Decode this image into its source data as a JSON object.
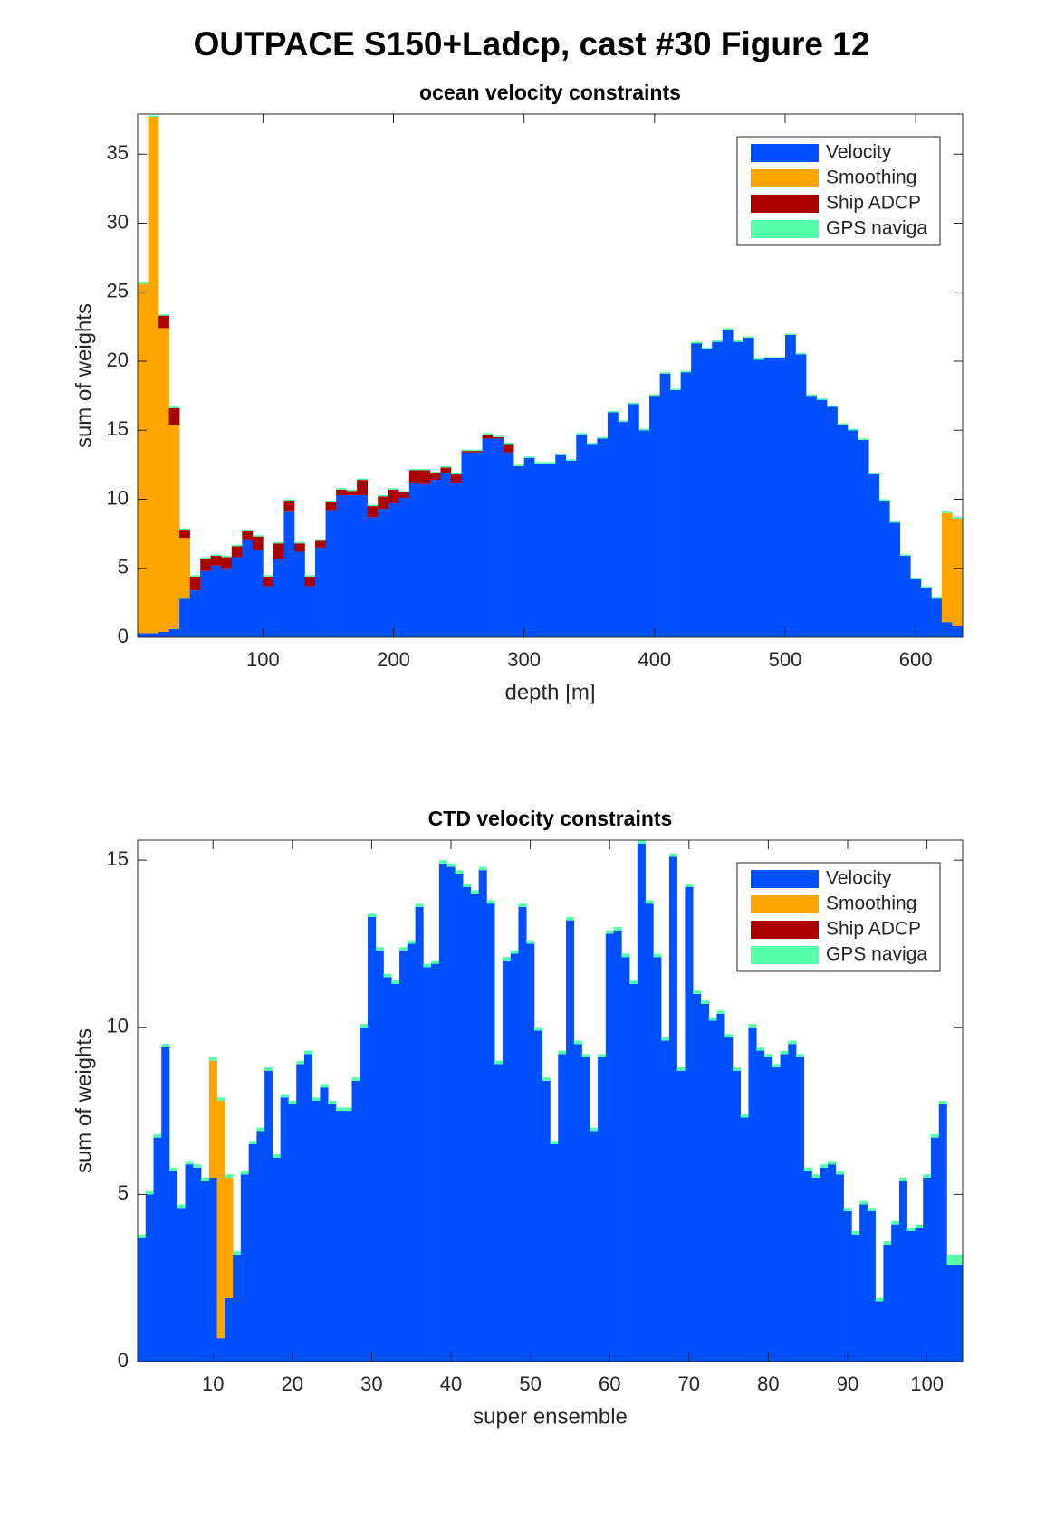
{
  "title": "OUTPACE S150+Ladcp, cast #30  Figure 12",
  "chart_data": [
    {
      "type": "bar",
      "stacked": true,
      "title": "ocean velocity constraints",
      "xlabel": "depth [m]",
      "ylabel": "sum of weights",
      "x": [
        8,
        16,
        24,
        32,
        40,
        48,
        56,
        64,
        72,
        80,
        88,
        96,
        104,
        112,
        120,
        128,
        136,
        144,
        152,
        160,
        168,
        176,
        184,
        192,
        200,
        208,
        216,
        224,
        232,
        240,
        248,
        256,
        264,
        272,
        280,
        288,
        296,
        304,
        312,
        320,
        328,
        336,
        344,
        352,
        360,
        368,
        376,
        384,
        392,
        400,
        408,
        416,
        424,
        432,
        440,
        448,
        456,
        464,
        472,
        480,
        488,
        496,
        504,
        512,
        520,
        528,
        536,
        544,
        552,
        560,
        568,
        576,
        584,
        592,
        600,
        608,
        616,
        624,
        632
      ],
      "xlim": [
        4,
        636
      ],
      "xticks": [
        100,
        200,
        300,
        400,
        500,
        600
      ],
      "ylim": [
        0,
        37.9
      ],
      "yticks": [
        0,
        5,
        10,
        15,
        20,
        25,
        30,
        35
      ],
      "legend": "northeast",
      "series": [
        {
          "name": "Velocity",
          "color": "#0050ff",
          "values": [
            0.3,
            0.3,
            0.4,
            0.6,
            2.8,
            3.4,
            4.8,
            5.2,
            5.0,
            5.8,
            7.1,
            6.3,
            3.7,
            5.7,
            9.1,
            6.2,
            3.7,
            6.5,
            9.2,
            10.3,
            10.3,
            10.3,
            8.7,
            9.3,
            9.7,
            10.1,
            11.2,
            11.1,
            11.4,
            11.9,
            11.2,
            13.4,
            13.4,
            14.4,
            14.4,
            13.4,
            12.4,
            13.0,
            12.6,
            12.6,
            13.2,
            12.8,
            14.7,
            14.0,
            14.4,
            16.3,
            15.6,
            16.9,
            15.0,
            17.5,
            19.1,
            17.9,
            19.2,
            21.3,
            20.9,
            21.4,
            22.3,
            21.4,
            21.7,
            20.1,
            20.2,
            20.2,
            21.9,
            20.5,
            17.5,
            17.2,
            16.7,
            15.4,
            15.0,
            14.3,
            11.8,
            9.9,
            8.3,
            5.9,
            4.2,
            3.6,
            2.8,
            1.1,
            0.8
          ]
        },
        {
          "name": "Smoothing",
          "color": "#ffa500",
          "values": [
            25.3,
            37.4,
            22.0,
            14.8,
            4.4,
            0,
            0,
            0,
            0,
            0,
            0,
            0,
            0,
            0,
            0,
            0,
            0,
            0,
            0,
            0,
            0,
            0,
            0,
            0,
            0,
            0,
            0,
            0,
            0,
            0,
            0,
            0,
            0,
            0,
            0,
            0,
            0,
            0,
            0,
            0,
            0,
            0,
            0,
            0,
            0,
            0,
            0,
            0,
            0,
            0,
            0,
            0,
            0,
            0,
            0,
            0,
            0,
            0,
            0,
            0,
            0,
            0,
            0,
            0,
            0,
            0,
            0,
            0,
            0,
            0,
            0,
            0,
            0,
            0,
            0,
            0,
            0,
            7.9,
            7.8
          ]
        },
        {
          "name": "Ship ADCP",
          "color": "#aa0000",
          "values": [
            0,
            0,
            0.9,
            1.2,
            0.6,
            1.0,
            0.9,
            0.7,
            0.8,
            0.8,
            0.6,
            1.0,
            0.7,
            1.1,
            0.8,
            0.6,
            0.7,
            0.5,
            0.6,
            0.4,
            0.3,
            1.1,
            0.8,
            0.9,
            1.0,
            0.4,
            0.9,
            1.0,
            0.5,
            0.4,
            0.6,
            0.1,
            0.1,
            0.3,
            0.1,
            0.6,
            0,
            0,
            0,
            0,
            0,
            0,
            0,
            0,
            0,
            0,
            0,
            0,
            0,
            0,
            0,
            0,
            0,
            0,
            0,
            0,
            0,
            0,
            0,
            0,
            0,
            0,
            0,
            0,
            0,
            0,
            0,
            0,
            0,
            0,
            0,
            0,
            0,
            0,
            0,
            0,
            0,
            0,
            0
          ]
        },
        {
          "name": "GPS naviga",
          "color": "#55ffaa",
          "values": [
            0.1,
            0.1,
            0.1,
            0.1,
            0.1,
            0.1,
            0.1,
            0.1,
            0.1,
            0.1,
            0.1,
            0.1,
            0.1,
            0.1,
            0.1,
            0.1,
            0.1,
            0.1,
            0.1,
            0.1,
            0.1,
            0.1,
            0.1,
            0.1,
            0.1,
            0.1,
            0.1,
            0.1,
            0.1,
            0.1,
            0.1,
            0.1,
            0.1,
            0.1,
            0.1,
            0.1,
            0.1,
            0.1,
            0.1,
            0.1,
            0.1,
            0.1,
            0.1,
            0.1,
            0.1,
            0.1,
            0.1,
            0.1,
            0.1,
            0.1,
            0.1,
            0.1,
            0.1,
            0.1,
            0.1,
            0.1,
            0.1,
            0.1,
            0.1,
            0.1,
            0.1,
            0.1,
            0.1,
            0.1,
            0.1,
            0.1,
            0.1,
            0.1,
            0.1,
            0.1,
            0.1,
            0.1,
            0.1,
            0.1,
            0.1,
            0.1,
            0.1,
            0.1,
            0.1
          ]
        }
      ]
    },
    {
      "type": "bar",
      "stacked": true,
      "title": "CTD velocity constraints",
      "xlabel": "super ensemble",
      "ylabel": "sum of weights",
      "x": [
        1,
        2,
        3,
        4,
        5,
        6,
        7,
        8,
        9,
        10,
        11,
        12,
        13,
        14,
        15,
        16,
        17,
        18,
        19,
        20,
        21,
        22,
        23,
        24,
        25,
        26,
        27,
        28,
        29,
        30,
        31,
        32,
        33,
        34,
        35,
        36,
        37,
        38,
        39,
        40,
        41,
        42,
        43,
        44,
        45,
        46,
        47,
        48,
        49,
        50,
        51,
        52,
        53,
        54,
        55,
        56,
        57,
        58,
        59,
        60,
        61,
        62,
        63,
        64,
        65,
        66,
        67,
        68,
        69,
        70,
        71,
        72,
        73,
        74,
        75,
        76,
        77,
        78,
        79,
        80,
        81,
        82,
        83,
        84,
        85,
        86,
        87,
        88,
        89,
        90,
        91,
        92,
        93,
        94,
        95,
        96,
        97,
        98,
        99,
        100,
        101,
        102,
        103,
        104
      ],
      "xlim": [
        0.5,
        104.5
      ],
      "xticks": [
        10,
        20,
        30,
        40,
        50,
        60,
        70,
        80,
        90,
        100
      ],
      "ylim": [
        0,
        15.6
      ],
      "yticks": [
        0,
        5,
        10,
        15
      ],
      "legend": "northeast",
      "series": [
        {
          "name": "Velocity",
          "color": "#0050ff",
          "values": [
            3.7,
            5.0,
            6.7,
            9.4,
            5.7,
            4.6,
            5.9,
            5.8,
            5.4,
            5.5,
            0.7,
            1.9,
            3.2,
            5.6,
            6.5,
            6.9,
            8.7,
            6.1,
            7.9,
            7.7,
            8.9,
            9.2,
            7.8,
            8.2,
            7.7,
            7.5,
            7.5,
            8.4,
            10.0,
            13.3,
            12.3,
            11.5,
            11.3,
            12.3,
            12.5,
            13.6,
            11.8,
            11.9,
            14.9,
            14.8,
            14.6,
            14.2,
            14.0,
            14.7,
            13.7,
            8.9,
            12.0,
            12.2,
            13.6,
            12.5,
            9.9,
            8.4,
            6.5,
            9.2,
            13.2,
            9.5,
            9.1,
            6.9,
            9.1,
            12.8,
            12.9,
            12.1,
            11.3,
            15.5,
            13.7,
            12.1,
            9.6,
            15.1,
            8.7,
            14.2,
            11.0,
            10.7,
            10.2,
            10.4,
            9.7,
            8.7,
            7.3,
            10.0,
            9.3,
            9.1,
            8.8,
            9.2,
            9.5,
            9.1,
            5.7,
            5.5,
            5.8,
            5.9,
            5.6,
            4.5,
            3.8,
            4.7,
            4.5,
            1.8,
            3.5,
            4.1,
            5.4,
            3.9,
            4.0,
            5.5,
            6.7,
            7.7,
            2.9,
            2.9
          ]
        },
        {
          "name": "Smoothing",
          "color": "#ffa500",
          "values": [
            0,
            0,
            0,
            0,
            0,
            0,
            0,
            0,
            0,
            3.5,
            7.1,
            3.6,
            0,
            0,
            0,
            0,
            0,
            0,
            0,
            0,
            0,
            0,
            0,
            0,
            0,
            0,
            0,
            0,
            0,
            0,
            0,
            0,
            0,
            0,
            0,
            0,
            0,
            0,
            0,
            0,
            0,
            0,
            0,
            0,
            0,
            0,
            0,
            0,
            0,
            0,
            0,
            0,
            0,
            0,
            0,
            0,
            0,
            0,
            0,
            0,
            0,
            0,
            0,
            0,
            0,
            0,
            0,
            0,
            0,
            0,
            0,
            0,
            0,
            0,
            0,
            0,
            0,
            0,
            0,
            0,
            0,
            0,
            0,
            0,
            0,
            0,
            0,
            0,
            0,
            0,
            0,
            0,
            0,
            0,
            0,
            0,
            0,
            0,
            0,
            0,
            0,
            0,
            0,
            0
          ]
        },
        {
          "name": "Ship ADCP",
          "color": "#aa0000",
          "values": [
            0,
            0,
            0,
            0,
            0,
            0,
            0,
            0,
            0,
            0,
            0,
            0,
            0,
            0,
            0,
            0,
            0,
            0,
            0,
            0,
            0,
            0,
            0,
            0,
            0,
            0,
            0,
            0,
            0,
            0,
            0,
            0,
            0,
            0,
            0,
            0,
            0,
            0,
            0,
            0,
            0,
            0,
            0,
            0,
            0,
            0,
            0,
            0,
            0,
            0,
            0,
            0,
            0,
            0,
            0,
            0,
            0,
            0,
            0,
            0,
            0,
            0,
            0,
            0,
            0,
            0,
            0,
            0,
            0,
            0,
            0,
            0,
            0,
            0,
            0,
            0,
            0,
            0,
            0,
            0,
            0,
            0,
            0,
            0,
            0,
            0,
            0,
            0,
            0,
            0,
            0,
            0,
            0,
            0,
            0,
            0,
            0,
            0,
            0,
            0,
            0,
            0,
            0,
            0
          ]
        },
        {
          "name": "GPS naviga",
          "color": "#55ffaa",
          "values": [
            0.1,
            0.1,
            0.1,
            0.1,
            0.1,
            0.1,
            0.1,
            0.1,
            0.1,
            0.1,
            0.1,
            0.1,
            0.1,
            0.1,
            0.1,
            0.1,
            0.1,
            0.1,
            0.1,
            0.1,
            0.1,
            0.1,
            0.1,
            0.1,
            0.1,
            0.1,
            0.1,
            0.1,
            0.1,
            0.1,
            0.1,
            0.1,
            0.1,
            0.1,
            0.1,
            0.1,
            0.1,
            0.1,
            0.1,
            0.1,
            0.1,
            0.1,
            0.1,
            0.1,
            0.1,
            0.1,
            0.1,
            0.1,
            0.1,
            0.1,
            0.1,
            0.1,
            0.1,
            0.1,
            0.1,
            0.1,
            0.1,
            0.1,
            0.1,
            0.1,
            0.1,
            0.1,
            0.1,
            0.1,
            0.1,
            0.1,
            0.1,
            0.1,
            0.1,
            0.1,
            0.1,
            0.1,
            0.1,
            0.1,
            0.1,
            0.1,
            0.1,
            0.1,
            0.1,
            0.1,
            0.1,
            0.1,
            0.1,
            0.1,
            0.1,
            0.1,
            0.1,
            0.1,
            0.1,
            0.1,
            0.1,
            0.1,
            0.1,
            0.1,
            0.1,
            0.1,
            0.1,
            0.1,
            0.1,
            0.1,
            0.1,
            0.1,
            0.3,
            0.3
          ]
        }
      ]
    }
  ]
}
